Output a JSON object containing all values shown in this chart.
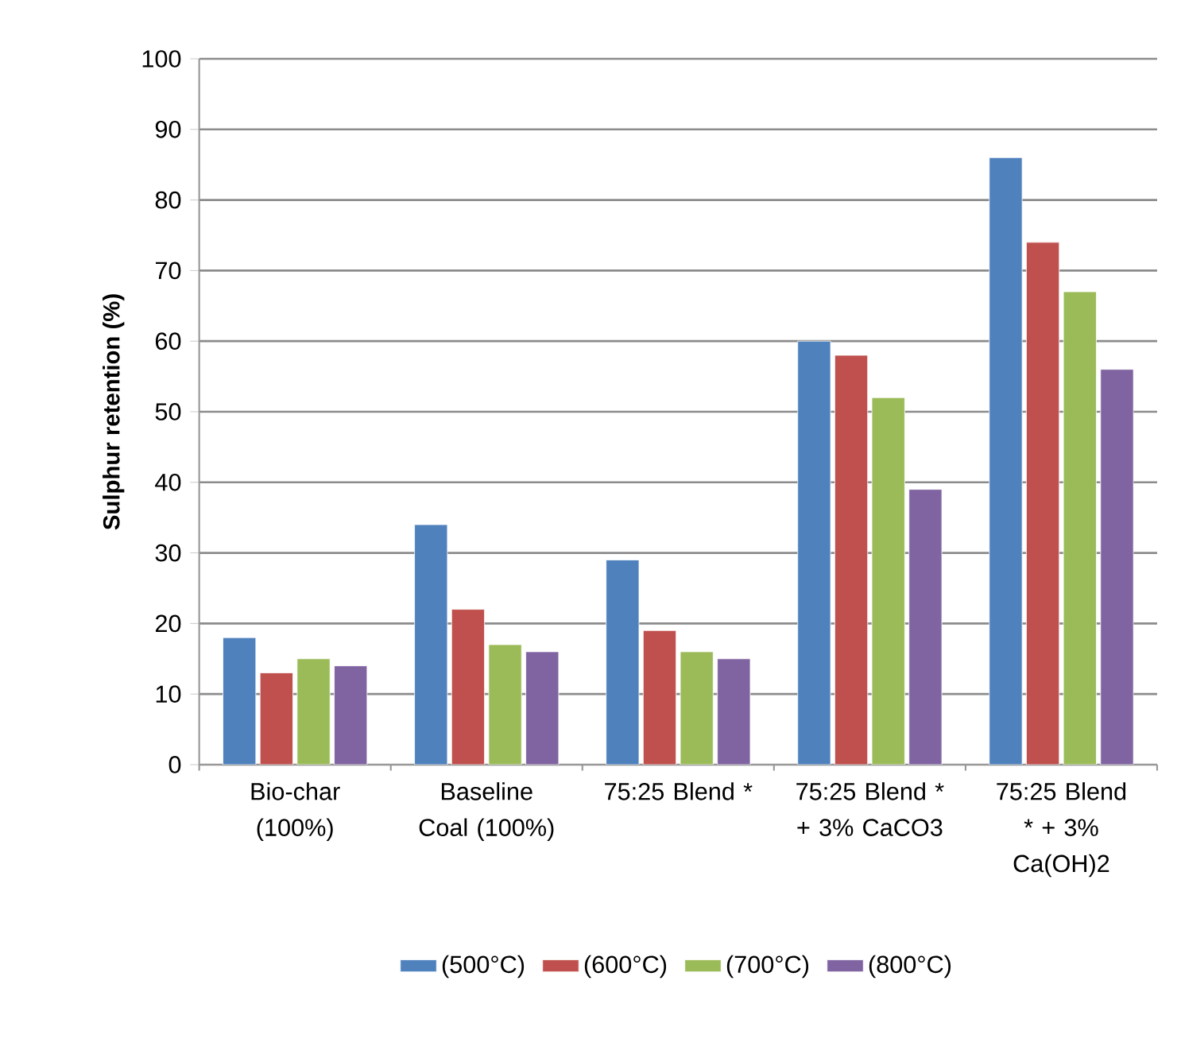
{
  "chart_data": {
    "type": "bar",
    "ylabel": "Sulphur retention (%)",
    "categories": [
      "Bio-char (100%)",
      "Baseline Coal (100%)",
      "75:25 Blend *",
      "75:25 Blend * + 3% CaCO3",
      "75:25 Blend * + 3% Ca(OH)2"
    ],
    "series": [
      {
        "name": "(500°C)",
        "color": "#4f81bd",
        "values": [
          18,
          34,
          29,
          60,
          86
        ]
      },
      {
        "name": "(600°C)",
        "color": "#c0504d",
        "values": [
          13,
          22,
          19,
          58,
          74
        ]
      },
      {
        "name": "(700°C)",
        "color": "#9bbb59",
        "values": [
          15,
          17,
          16,
          52,
          67
        ]
      },
      {
        "name": "(800°C)",
        "color": "#8064a2",
        "values": [
          14,
          16,
          15,
          39,
          56
        ]
      }
    ],
    "ylim": [
      0,
      100
    ],
    "yticks": [
      0,
      10,
      20,
      30,
      40,
      50,
      60,
      70,
      80,
      90,
      100
    ],
    "grid": "y",
    "legend": "bottom"
  }
}
